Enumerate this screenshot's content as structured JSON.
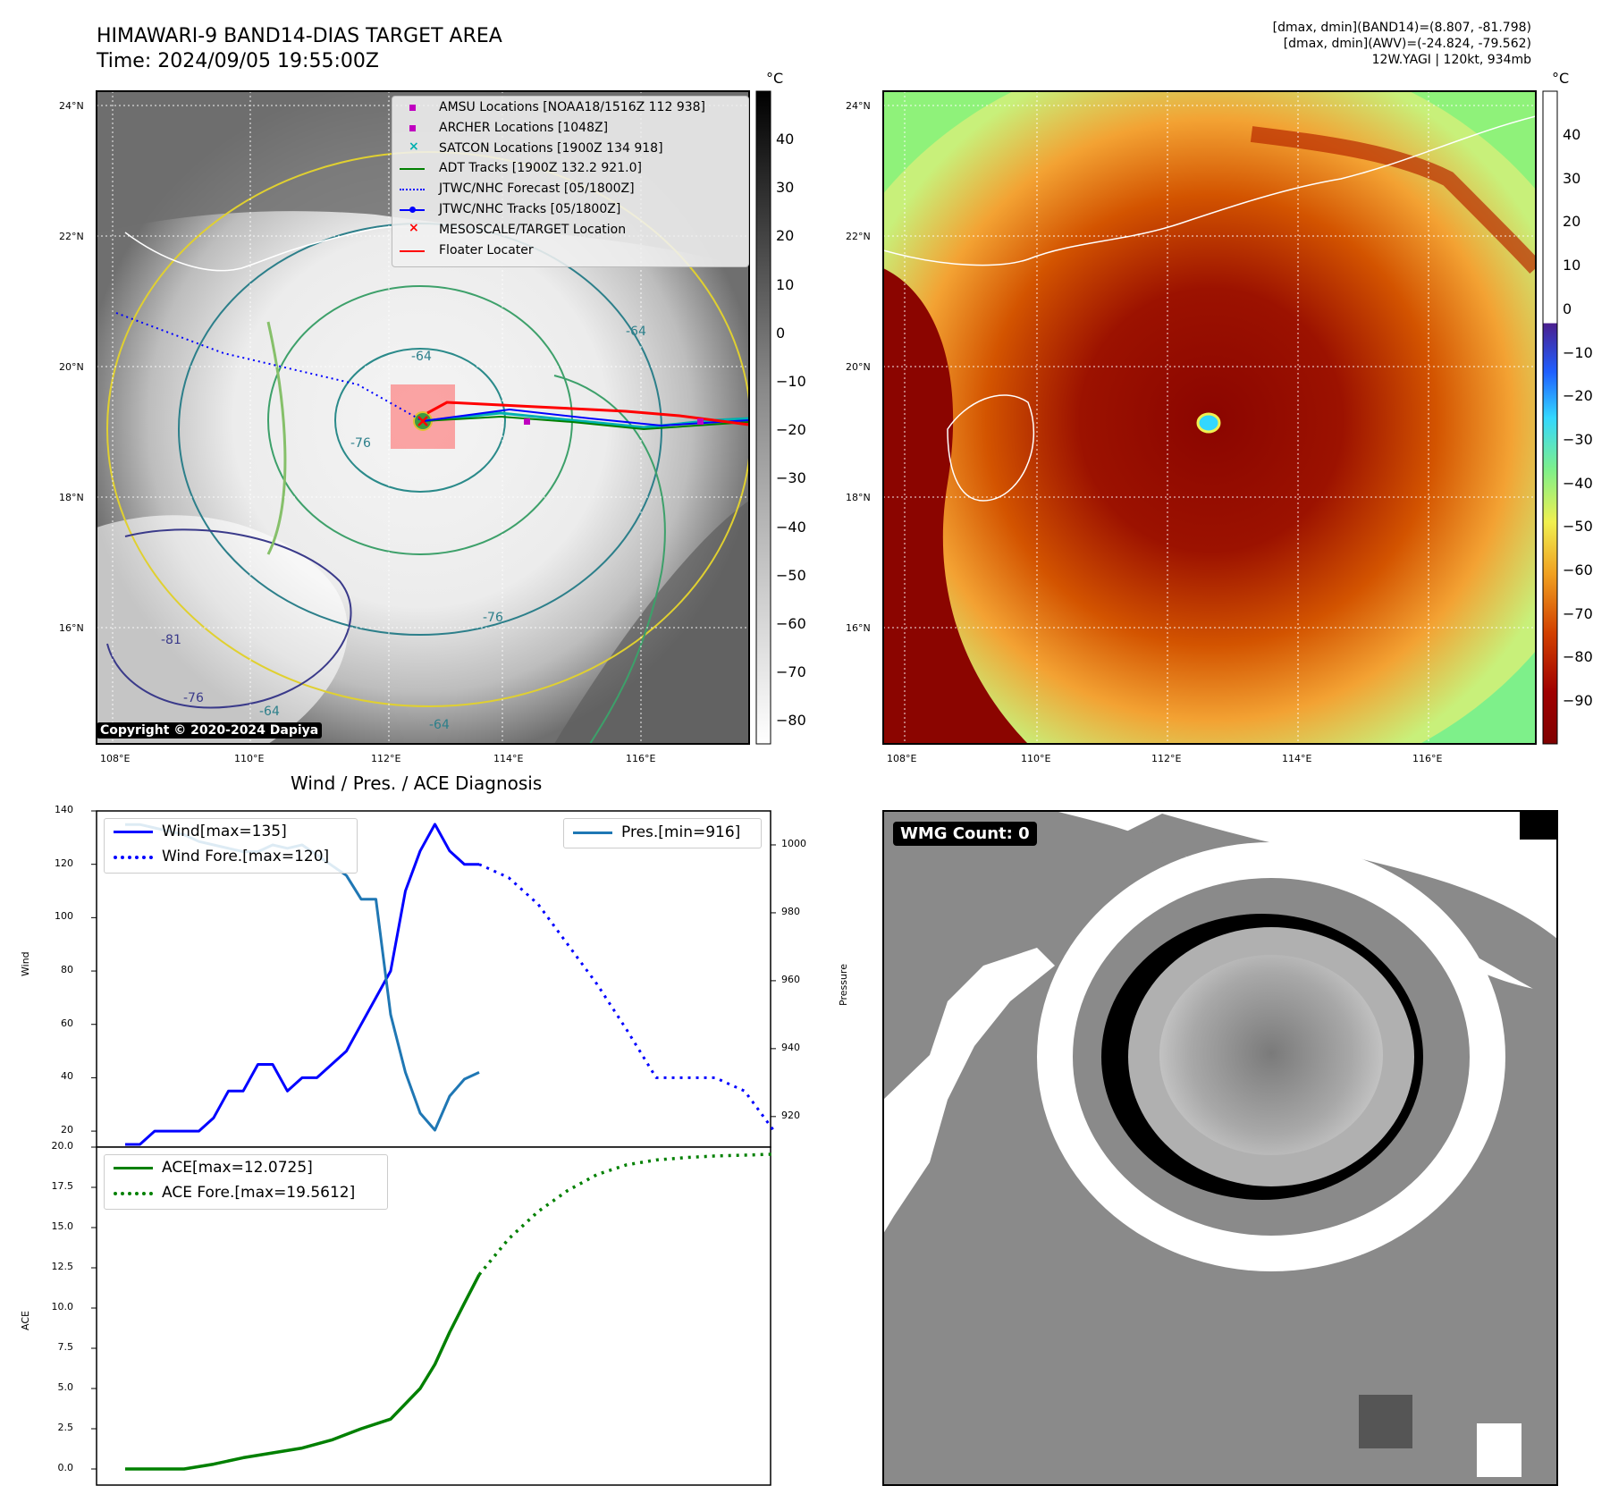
{
  "header": {
    "title_line1": "HIMAWARI-9 BAND14-DIAS TARGET AREA",
    "title_line2": "Time: 2024/09/05 19:55:00Z",
    "info_line1": "[dmax, dmin](BAND14)=(8.807, -81.798)",
    "info_line2": "[dmax, dmin](AWV)=(-24.824, -79.562)",
    "info_line3": "12W.YAGI | 120kt, 934mb"
  },
  "map_axes": {
    "lat_labels": [
      "24°N",
      "22°N",
      "20°N",
      "18°N",
      "16°N"
    ],
    "lon_labels": [
      "108°E",
      "110°E",
      "112°E",
      "114°E",
      "116°E"
    ]
  },
  "ir_map": {
    "copyright": "Copyright © 2020-2024 Dapiya",
    "contour_labels": [
      "-64",
      "-76",
      "-81",
      "-76",
      "-64",
      "-76",
      "-64",
      "-76",
      "-64"
    ],
    "legend": [
      {
        "label": "AMSU Locations [NOAA18/1516Z 112 938]",
        "color": "#c000c0",
        "marker": "square"
      },
      {
        "label": "ARCHER Locations [1048Z]",
        "color": "#c000c0",
        "marker": "square"
      },
      {
        "label": "SATCON Locations [1900Z 134 918]",
        "color": "#00c0c0",
        "marker": "x"
      },
      {
        "label": "ADT Tracks [1900Z 132.2 921.0]",
        "color": "#008000",
        "marker": "line"
      },
      {
        "label": "JTWC/NHC Forecast [05/1800Z]",
        "color": "#0000ff",
        "marker": "dotted"
      },
      {
        "label": "JTWC/NHC Tracks [05/1800Z]",
        "color": "#0000ff",
        "marker": "line-dot"
      },
      {
        "label": "MESOSCALE/TARGET Location",
        "color": "#ff0000",
        "marker": "x"
      },
      {
        "label": "Floater Locater",
        "color": "#ff0000",
        "marker": "line"
      }
    ],
    "colorbar_unit": "°C",
    "colorbar_ticks": [
      "40",
      "30",
      "20",
      "10",
      "0",
      "−10",
      "−20",
      "−30",
      "−40",
      "−50",
      "−60",
      "−70",
      "−80"
    ]
  },
  "awv_map": {
    "colorbar_unit": "°C",
    "colorbar_ticks": [
      "40",
      "30",
      "20",
      "10",
      "0",
      "−10",
      "−20",
      "−30",
      "−40",
      "−50",
      "−60",
      "−70",
      "−80",
      "−90"
    ]
  },
  "diagnosis_title": "Wind / Pres. / ACE Diagnosis",
  "wmg_badge": "WMG Count: 0",
  "chart_data": [
    {
      "type": "line",
      "title": "Wind / Pres. / ACE Diagnosis",
      "ylabel": "Wind",
      "ylabel_right": "Pressure",
      "ylim": [
        14,
        140
      ],
      "ylim_right": [
        911,
        1010
      ],
      "yticks": [
        20,
        40,
        60,
        80,
        100,
        120,
        140
      ],
      "yticks_right": [
        920,
        940,
        960,
        980,
        1000
      ],
      "series": [
        {
          "name": "Wind[max=135]",
          "color": "#0000ff",
          "style": "solid",
          "axis": "left",
          "x": [
            0,
            1,
            2,
            3,
            4,
            5,
            6,
            7,
            8,
            9,
            10,
            11,
            12,
            13,
            14,
            15,
            16,
            17,
            18,
            19,
            20,
            21,
            22,
            23,
            24
          ],
          "values": [
            15,
            15,
            20,
            20,
            20,
            20,
            25,
            35,
            35,
            45,
            45,
            35,
            40,
            40,
            45,
            50,
            60,
            70,
            80,
            110,
            125,
            135,
            125,
            120,
            120
          ]
        },
        {
          "name": "Wind Fore.[max=120]",
          "color": "#0000ff",
          "style": "dotted",
          "axis": "left",
          "x": [
            24,
            26,
            28,
            30,
            32,
            34,
            36,
            38,
            40,
            42,
            44
          ],
          "values": [
            120,
            115,
            105,
            90,
            75,
            58,
            40,
            40,
            40,
            35,
            20
          ]
        },
        {
          "name": "Pres.[min=916]",
          "color": "#1f77b4",
          "style": "solid",
          "axis": "right",
          "x": [
            0,
            1,
            2,
            3,
            4,
            5,
            6,
            7,
            8,
            9,
            10,
            11,
            12,
            13,
            14,
            15,
            16,
            17,
            18,
            19,
            20,
            21,
            22,
            23,
            24
          ],
          "values": [
            1006,
            1006,
            1005,
            1004,
            1003,
            1001,
            1000,
            999,
            998,
            998,
            1000,
            999,
            1000,
            997,
            994,
            991,
            984,
            984,
            950,
            933,
            921,
            916,
            926,
            931,
            933
          ]
        }
      ]
    },
    {
      "type": "line",
      "ylabel": "ACE",
      "ylim": [
        -1.0,
        20.0
      ],
      "yticks": [
        0.0,
        2.5,
        5.0,
        7.5,
        10.0,
        12.5,
        15.0,
        17.5,
        20.0
      ],
      "series": [
        {
          "name": "ACE[max=12.0725]",
          "color": "#008000",
          "style": "solid",
          "x": [
            0,
            2,
            4,
            6,
            8,
            10,
            12,
            14,
            16,
            18,
            20,
            21,
            22,
            23,
            24
          ],
          "values": [
            0.0,
            0.0,
            0.0,
            0.3,
            0.7,
            1.0,
            1.3,
            1.8,
            2.5,
            3.1,
            5.0,
            6.5,
            8.5,
            10.3,
            12.07
          ]
        },
        {
          "name": "ACE Fore.[max=19.5612]",
          "color": "#008000",
          "style": "dotted",
          "x": [
            24,
            26,
            28,
            30,
            32,
            34,
            36,
            38,
            40,
            42,
            44
          ],
          "values": [
            12.07,
            14.3,
            16.0,
            17.3,
            18.3,
            18.9,
            19.2,
            19.35,
            19.45,
            19.5,
            19.56
          ]
        }
      ]
    }
  ]
}
